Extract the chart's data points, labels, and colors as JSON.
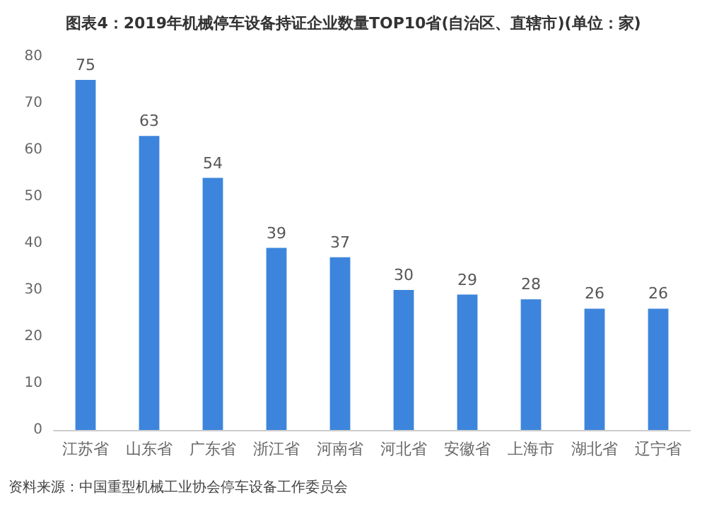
{
  "chart_data": {
    "type": "bar",
    "title": "图表4：2019年机械停车设备持证企业数量TOP10省(自治区、直辖市)(单位：家)",
    "categories": [
      "江苏省",
      "山东省",
      "广东省",
      "浙江省",
      "河南省",
      "河北省",
      "安徽省",
      "上海市",
      "湖北省",
      "辽宁省"
    ],
    "values": [
      75,
      63,
      54,
      39,
      37,
      30,
      29,
      28,
      26,
      26
    ],
    "color": "#3d85dc",
    "ylim": [
      0,
      80
    ],
    "yticks": [
      0,
      10,
      20,
      30,
      40,
      50,
      60,
      70,
      80
    ],
    "grid": false,
    "data_labels": true,
    "annotations": [
      "资料来源：中国重型机械工业协会停车设备工作委员会"
    ]
  }
}
